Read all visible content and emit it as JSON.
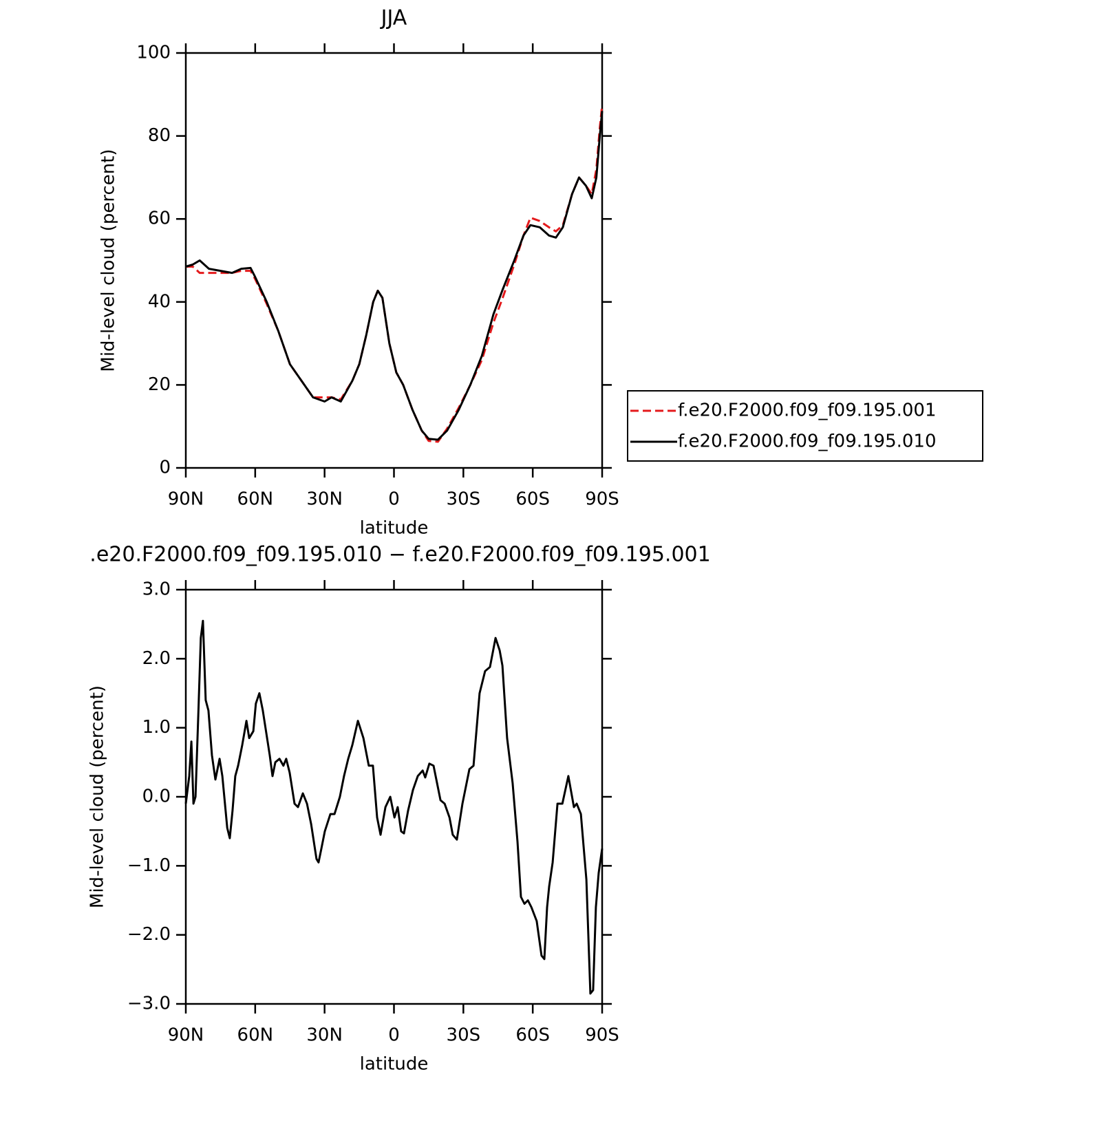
{
  "chart_data": [
    {
      "type": "line",
      "title": "JJA",
      "xlabel": "latitude",
      "ylabel": "Mid-level cloud (percent)",
      "xlim": [
        90,
        -90
      ],
      "xticks": [
        {
          "value": 90,
          "label": "90N"
        },
        {
          "value": 60,
          "label": "60N"
        },
        {
          "value": 30,
          "label": "30N"
        },
        0,
        {
          "value": -30,
          "label": "30S"
        },
        {
          "value": -60,
          "label": "60S"
        },
        {
          "value": -90,
          "label": "90S"
        }
      ],
      "ylim": [
        0,
        100
      ],
      "yticks": [
        0,
        20,
        40,
        60,
        80,
        100
      ],
      "legend": "right",
      "x": [
        90,
        87,
        84,
        80,
        75,
        70,
        66,
        62,
        60,
        55,
        50,
        45,
        40,
        35,
        30,
        27,
        23,
        18,
        15,
        12,
        9,
        7,
        5,
        2,
        -1,
        -4,
        -8,
        -12,
        -15,
        -19,
        -23,
        -28,
        -33,
        -38,
        -43,
        -47,
        -52,
        -56,
        -59,
        -63,
        -67,
        -70,
        -73,
        -77,
        -80,
        -83,
        -85.5,
        -87.5,
        -89,
        -90
      ],
      "series": [
        {
          "name": "f.e20.F2000.f09_f09.195.001",
          "color": "#e41a1c",
          "dash": true,
          "values": [
            48.5,
            48.5,
            47,
            47,
            47,
            47,
            47.5,
            47.5,
            45.5,
            39.5,
            33,
            25,
            21,
            17,
            17,
            17,
            16.5,
            21,
            25,
            32,
            40,
            42.7,
            41,
            30,
            23,
            20,
            14,
            9,
            6.5,
            6.3,
            9.5,
            14.5,
            20,
            26,
            35,
            41,
            49,
            56,
            60.3,
            59.5,
            58,
            57,
            58.5,
            66,
            70,
            68,
            66,
            72,
            82,
            87.5
          ]
        },
        {
          "name": "f.e20.F2000.f09_f09.195.010",
          "color": "#000000",
          "dash": false,
          "values": [
            48.5,
            49,
            50,
            48,
            47.5,
            47,
            48,
            48.2,
            46,
            40,
            33,
            25,
            21,
            17,
            16,
            17,
            16,
            21,
            25,
            32,
            40,
            42.7,
            41,
            30,
            23,
            20,
            14,
            9,
            7,
            6.8,
            9,
            14,
            20,
            27,
            37,
            43,
            50,
            56,
            58.5,
            58,
            56,
            55.5,
            58,
            66,
            70,
            68,
            65,
            70,
            80,
            86
          ]
        }
      ]
    },
    {
      "type": "line",
      "title": ".e20.F2000.f09_f09.195.010 − f.e20.F2000.f09_f09.195.001",
      "xlabel": "latitude",
      "ylabel": "Mid-level cloud (percent)",
      "xlim": [
        90,
        -90
      ],
      "xticks": [
        {
          "value": 90,
          "label": "90N"
        },
        {
          "value": 60,
          "label": "60N"
        },
        {
          "value": 30,
          "label": "30N"
        },
        0,
        {
          "value": -30,
          "label": "30S"
        },
        {
          "value": -60,
          "label": "60S"
        },
        {
          "value": -90,
          "label": "90S"
        }
      ],
      "ylim": [
        -3,
        3
      ],
      "yticks": [
        {
          "value": -3,
          "label": "−3.0"
        },
        {
          "value": -2,
          "label": "−2.0"
        },
        {
          "value": -1,
          "label": "−1.0"
        },
        {
          "value": 0,
          "label": "0.0"
        },
        {
          "value": 1,
          "label": "1.0"
        },
        {
          "value": 2,
          "label": "2.0"
        },
        {
          "value": 3,
          "label": "3.0"
        }
      ],
      "color": "#000000",
      "x": [
        90,
        88.5,
        87.6,
        86.7,
        85.8,
        84.6,
        83.5,
        82.6,
        81.4,
        80.2,
        78.7,
        77.2,
        75.4,
        74.2,
        72.1,
        71,
        69.8,
        68.6,
        67.4,
        65.6,
        63.8,
        62.6,
        60.8,
        59.7,
        58.2,
        56.7,
        53.7,
        52.5,
        51.3,
        49.5,
        47.8,
        46.6,
        45.1,
        43,
        41.5,
        39.4,
        37.6,
        35.8,
        33.5,
        32.6,
        31.4,
        29.9,
        27.5,
        25.7,
        23.4,
        21.6,
        19.8,
        18,
        15.6,
        13.2,
        10.9,
        9.1,
        7.3,
        5.8,
        3.7,
        1.6,
        -0.2,
        -1.6,
        -3.1,
        -4.3,
        -6.1,
        -8.2,
        -10.3,
        -12.4,
        -13.5,
        -15.3,
        -17.1,
        -20.1,
        -21.9,
        -24,
        -25.4,
        -27.2,
        -29.6,
        -32.6,
        -34.4,
        -37,
        -39.4,
        -41.5,
        -43.9,
        -45.7,
        -46.9,
        -48.9,
        -51.3,
        -53.4,
        -54.9,
        -56.4,
        -57.9,
        -59.4,
        -61.7,
        -63.8,
        -65,
        -66.2,
        -67.1,
        -68.6,
        -70.7,
        -72.8,
        -75.4,
        -77.8,
        -79,
        -80.8,
        -83.2,
        -84.9,
        -86.1,
        -87.3,
        -88.5,
        -90
      ],
      "values": [
        -0.1,
        0.3,
        0.8,
        -0.1,
        0,
        1.2,
        2.3,
        2.55,
        1.4,
        1.25,
        0.6,
        0.25,
        0.55,
        0.3,
        -0.45,
        -0.6,
        -0.2,
        0.3,
        0.45,
        0.75,
        1.1,
        0.85,
        0.95,
        1.35,
        1.5,
        1.25,
        0.6,
        0.3,
        0.5,
        0.55,
        0.45,
        0.55,
        0.35,
        -0.1,
        -0.15,
        0.05,
        -0.1,
        -0.4,
        -0.9,
        -0.95,
        -0.75,
        -0.5,
        -0.25,
        -0.25,
        0,
        0.3,
        0.55,
        0.75,
        1.1,
        0.85,
        0.45,
        0.45,
        -0.3,
        -0.55,
        -0.15,
        0,
        -0.3,
        -0.15,
        -0.5,
        -0.53,
        -0.2,
        0.1,
        0.3,
        0.38,
        0.28,
        0.48,
        0.45,
        -0.05,
        -0.1,
        -0.3,
        -0.55,
        -0.62,
        -0.1,
        0.4,
        0.45,
        1.5,
        1.82,
        1.88,
        2.3,
        2.12,
        1.9,
        0.85,
        0.2,
        -0.65,
        -1.45,
        -1.55,
        -1.5,
        -1.6,
        -1.8,
        -2.3,
        -2.35,
        -1.6,
        -1.3,
        -0.95,
        -0.1,
        -0.1,
        0.3,
        -0.15,
        -0.1,
        -0.25,
        -1.2,
        -2.85,
        -2.8,
        -1.6,
        -1.1,
        -0.75
      ]
    }
  ]
}
